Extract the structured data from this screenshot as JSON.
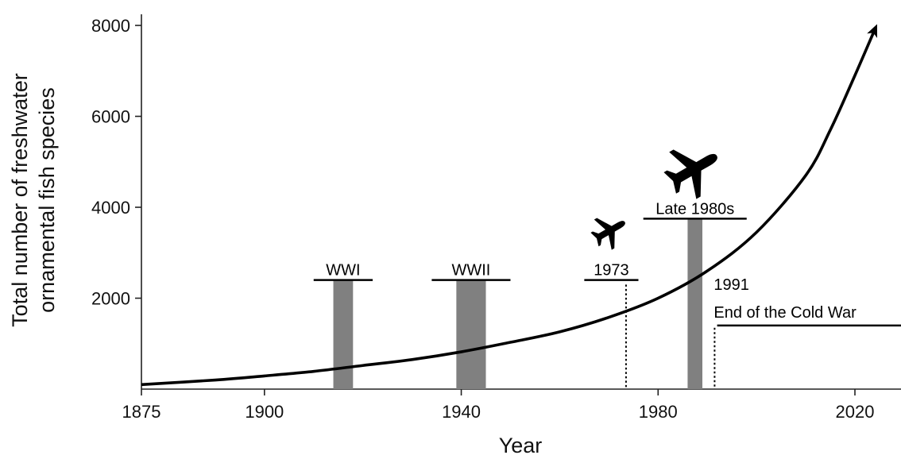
{
  "chart_data": {
    "type": "line",
    "title": "",
    "xlabel": "Year",
    "ylabel_lines": [
      "Total number of freshwater",
      "ornamental fish species"
    ],
    "xlim": [
      1875,
      2033
    ],
    "ylim": [
      0,
      8300
    ],
    "x_ticks": [
      1875,
      1900,
      1940,
      1980,
      2020
    ],
    "y_ticks": [
      2000,
      4000,
      6000,
      8000
    ],
    "grid": false,
    "series": [
      {
        "x": [
          1875,
          1890,
          1900,
          1910,
          1920,
          1930,
          1940,
          1950,
          1960,
          1970,
          1980,
          1990,
          2000,
          2010,
          2015,
          2020,
          2024
        ],
        "y": [
          100,
          200,
          290,
          390,
          520,
          650,
          820,
          1030,
          1260,
          1580,
          2000,
          2600,
          3450,
          4700,
          5700,
          6900,
          7900
        ],
        "arrow_end": true
      }
    ],
    "periods": [
      {
        "label": "WWI",
        "start": 1914,
        "end": 1918,
        "bar_top": 2400,
        "line_start": 1910,
        "line_end": 1922
      },
      {
        "label": "WWII",
        "start": 1939,
        "end": 1945,
        "bar_top": 2400,
        "line_start": 1934,
        "line_end": 1950
      }
    ],
    "events": [
      {
        "label": "1973",
        "year": 1973,
        "line_y": 2400,
        "line_start": 1965,
        "line_end": 1976,
        "dotted_top": 2300,
        "plane": "small"
      },
      {
        "label": "Late 1980s",
        "start": 1986,
        "end": 1989,
        "bar_top": 3750,
        "line_y": 3750,
        "line_start": 1977,
        "line_end": 1998,
        "plane": "large"
      },
      {
        "label": "1991",
        "sublabel": "End of the Cold War",
        "year": 1991,
        "line_y": 1400,
        "line_start": 1992,
        "line_end": 2033,
        "dotted_top": 1350
      }
    ]
  }
}
